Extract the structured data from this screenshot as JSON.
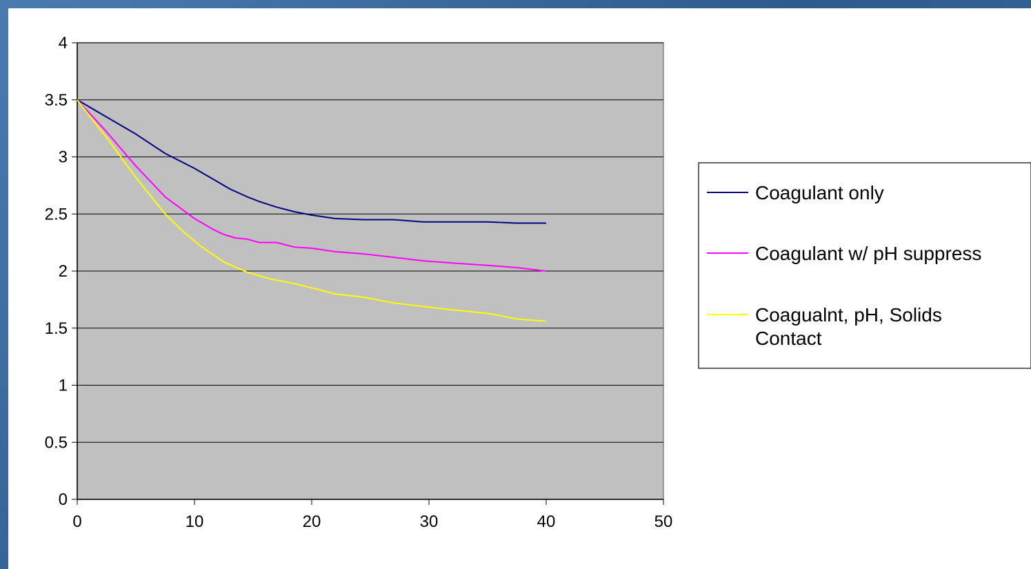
{
  "chart_data": {
    "type": "line",
    "title": "",
    "xlabel": "",
    "ylabel": "",
    "xlim": [
      0,
      50
    ],
    "ylim": [
      0,
      4
    ],
    "x_ticks": [
      "0",
      "10",
      "20",
      "30",
      "40",
      "50"
    ],
    "y_ticks": [
      "0",
      "0.5",
      "1",
      "1.5",
      "2",
      "2.5",
      "3",
      "3.5",
      "4"
    ],
    "grid": "horizontal",
    "plot_background": "#c0c0c0",
    "legend_position": "right",
    "series": [
      {
        "name": "Coagulant only",
        "color": "#000080",
        "x": [
          0,
          2.5,
          5,
          7.5,
          10,
          11.5,
          13,
          14.5,
          15.5,
          17,
          18.5,
          20,
          22,
          24.5,
          27,
          29.5,
          32,
          35,
          37.5,
          40
        ],
        "y": [
          3.5,
          3.35,
          3.2,
          3.03,
          2.9,
          2.81,
          2.72,
          2.65,
          2.61,
          2.56,
          2.52,
          2.49,
          2.46,
          2.45,
          2.45,
          2.43,
          2.43,
          2.43,
          2.42,
          2.42
        ]
      },
      {
        "name": "Coagulant w/ pH suppress",
        "color": "#ff00ff",
        "x": [
          0,
          2.5,
          5,
          7.5,
          10,
          11.5,
          12.5,
          13.5,
          14.5,
          15.5,
          17,
          18.5,
          20,
          22,
          24.5,
          27,
          29.5,
          32,
          35,
          37.5,
          40
        ],
        "y": [
          3.5,
          3.22,
          2.92,
          2.65,
          2.46,
          2.37,
          2.32,
          2.29,
          2.28,
          2.25,
          2.25,
          2.21,
          2.2,
          2.17,
          2.15,
          2.12,
          2.09,
          2.07,
          2.05,
          2.03,
          2.0
        ]
      },
      {
        "name": "Coagualnt, pH, Solids Contact",
        "name_lines": [
          "Coagualnt, pH, Solids",
          "Contact"
        ],
        "color": "#ffff00",
        "x": [
          0,
          2.5,
          5,
          7.5,
          9,
          10.5,
          12.5,
          14.5,
          16.5,
          18.5,
          20.5,
          22,
          24.5,
          27,
          29.5,
          32,
          35,
          37.5,
          40
        ],
        "y": [
          3.5,
          3.17,
          2.82,
          2.5,
          2.35,
          2.22,
          2.08,
          1.99,
          1.93,
          1.89,
          1.84,
          1.8,
          1.77,
          1.72,
          1.69,
          1.66,
          1.63,
          1.58,
          1.56
        ]
      }
    ]
  }
}
